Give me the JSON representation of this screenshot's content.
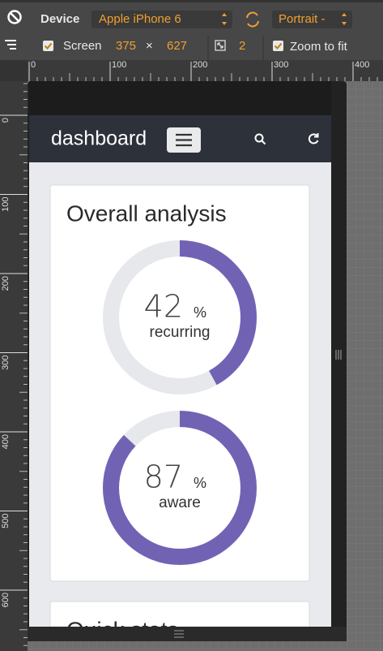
{
  "toolbar": {
    "device_label": "Device",
    "device": "Apple iPhone 6",
    "orientation": "Portrait -",
    "screen_label": "Screen",
    "width": "375",
    "times": "×",
    "height": "627",
    "pixel_ratio": "2",
    "zoom_label": "Zoom to fit"
  },
  "rulers": {
    "top": [
      0,
      100,
      200,
      300,
      400
    ],
    "left": [
      0,
      100,
      200,
      300,
      400,
      500,
      600
    ]
  },
  "app": {
    "brand": "dashboard",
    "cards": [
      {
        "title": "Overall analysis",
        "gauges": [
          {
            "value": 42,
            "unit": "%",
            "label": "recurring"
          },
          {
            "value": 87,
            "unit": "%",
            "label": "aware"
          }
        ]
      },
      {
        "title": "Quick stats"
      }
    ]
  }
}
